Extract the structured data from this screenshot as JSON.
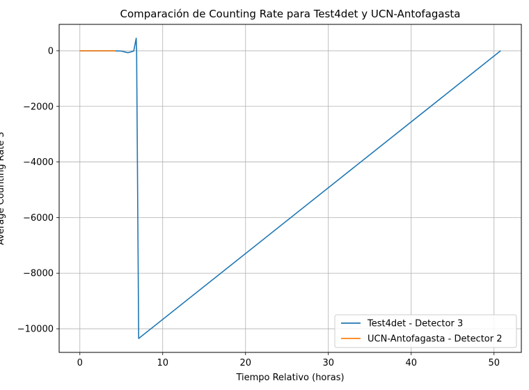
{
  "chart_data": {
    "type": "line",
    "title": "Comparación de Counting Rate para Test4det y UCN-Antofagasta",
    "xlabel": "Tiempo Relativo (horas)",
    "ylabel": "Average Counting Rate 3",
    "xlim": [
      -2.5,
      53.3
    ],
    "ylim": [
      -10850,
      950
    ],
    "xticks": [
      0,
      10,
      20,
      30,
      40,
      50
    ],
    "yticks": [
      0,
      -2000,
      -4000,
      -6000,
      -8000,
      -10000
    ],
    "grid": true,
    "legend_position": "lower-right",
    "series": [
      {
        "name": "Test4det - Detector 3",
        "color": "#1f77b4",
        "x": [
          0,
          1,
          2,
          3,
          4,
          5,
          5.8,
          6.5,
          6.8,
          6.85,
          7.1,
          50.8
        ],
        "y": [
          0,
          0,
          0,
          0,
          0,
          -10,
          -70,
          -10,
          450,
          -10,
          -10350,
          0
        ]
      },
      {
        "name": "UCN-Antofagasta - Detector 2",
        "color": "#ff7f0e",
        "x": [
          0,
          1,
          2,
          3,
          4,
          4.3
        ],
        "y": [
          0,
          0,
          0,
          0,
          0,
          0
        ]
      }
    ]
  }
}
